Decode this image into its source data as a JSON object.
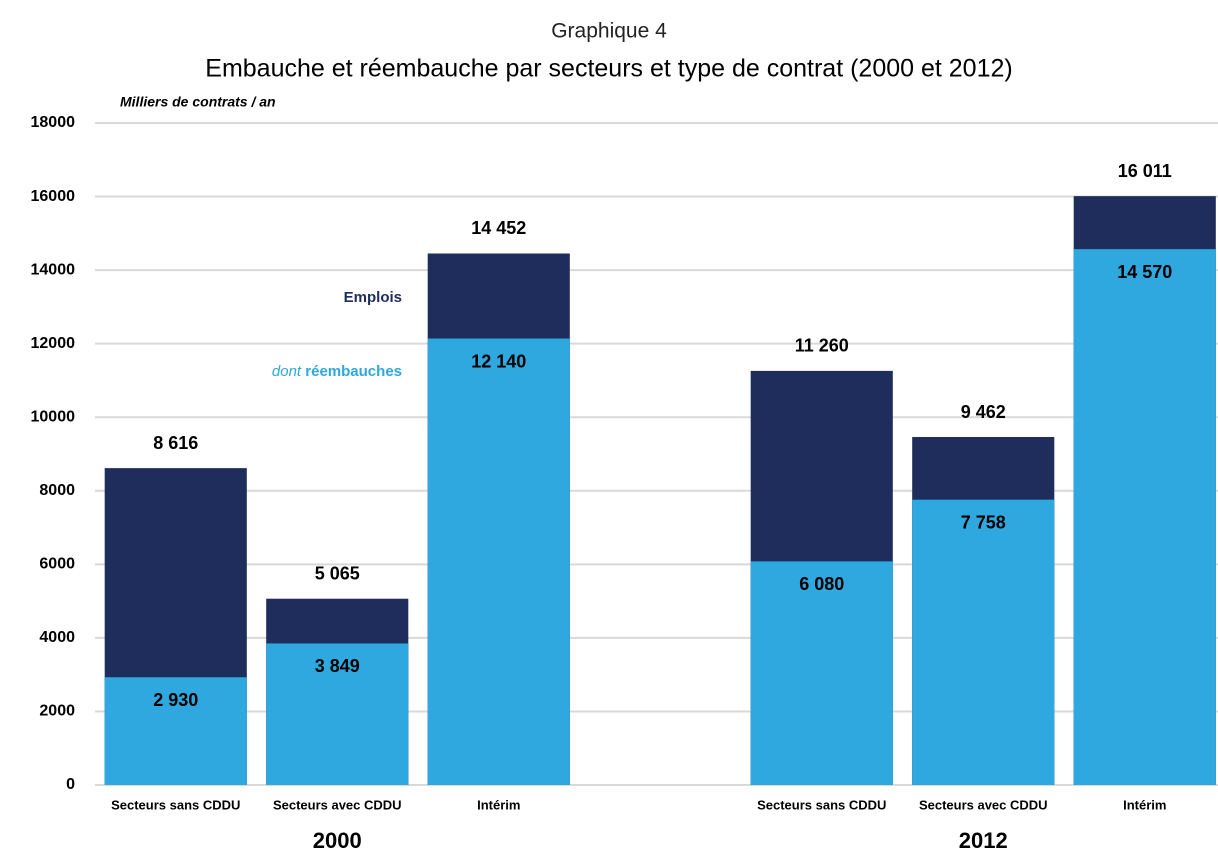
{
  "chart_data": {
    "type": "overlap_bar",
    "supertitle": "Graphique 4",
    "title": "Embauche et réembauche par secteurs et type de contrat (2000 et 2012)",
    "unit_label": "Milliers de contrats / an",
    "categories": [
      "Secteurs sans CDDU",
      "Secteurs avec CDDU",
      "Intérim",
      null,
      "Secteurs sans CDDU",
      "Secteurs avec CDDU",
      "Intérim"
    ],
    "groups": [
      {
        "label": "2000",
        "span": [
          0,
          2
        ]
      },
      {
        "label": "2012",
        "span": [
          4,
          6
        ]
      }
    ],
    "legend_prefix": "dont",
    "series": [
      {
        "name": "Emplois",
        "color": "#1f2d5c",
        "values": [
          8616,
          5065,
          14452,
          null,
          11260,
          9462,
          16011
        ],
        "value_labels": [
          "8 616",
          "5 065",
          "14 452",
          null,
          "11 260",
          "9 462",
          "16 011"
        ]
      },
      {
        "name": "réembauches",
        "color": "#2ea8de",
        "values": [
          2930,
          3849,
          12140,
          null,
          6080,
          7758,
          14570
        ],
        "value_labels": [
          "2 930",
          "3 849",
          "12 140",
          null,
          "6 080",
          "7 758",
          "14 570"
        ]
      }
    ],
    "ylim": [
      0,
      18000
    ],
    "yticks": [
      0,
      2000,
      4000,
      6000,
      8000,
      10000,
      12000,
      14000,
      16000,
      18000
    ],
    "grid": true
  }
}
